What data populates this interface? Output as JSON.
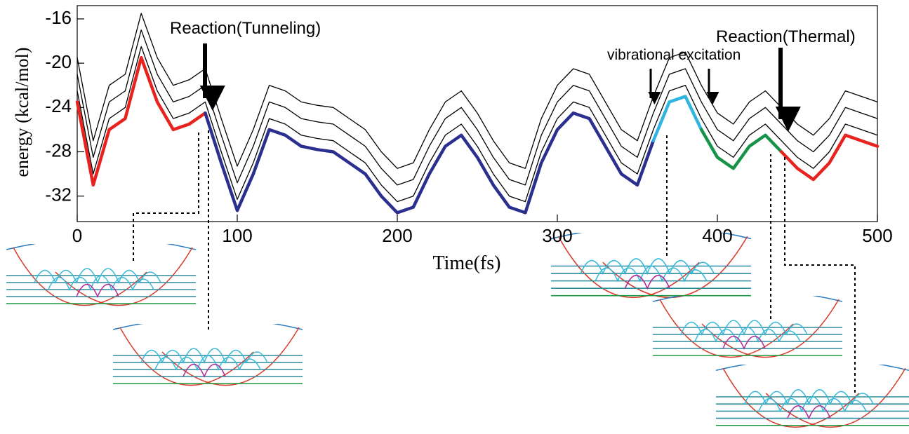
{
  "chart_data": {
    "type": "line",
    "y_label": "energy (kcal/mol)",
    "x_label": "Time(fs)",
    "annotations": [
      "Reaction(Tunneling)",
      "vibrational excitation",
      "Reaction(Thermal)"
    ],
    "xlim": [
      0,
      500
    ],
    "xticks": [
      0,
      100,
      200,
      300,
      400,
      500
    ],
    "ylim": [
      -34.3,
      -14.8
    ],
    "yticks": [
      -16,
      -20,
      -24,
      -28,
      -32
    ],
    "x": [
      0,
      10,
      20,
      30,
      40,
      50,
      60,
      70,
      80,
      90,
      100,
      110,
      120,
      130,
      140,
      150,
      160,
      170,
      180,
      190,
      200,
      210,
      220,
      230,
      240,
      250,
      260,
      270,
      280,
      290,
      300,
      310,
      320,
      330,
      340,
      350,
      360,
      370,
      380,
      390,
      400,
      410,
      420,
      430,
      440,
      450,
      460,
      470,
      480,
      490,
      500
    ],
    "series": [
      {
        "color": "#000000",
        "values": [
          -22.5,
          -30,
          -25,
          -24,
          -18.5,
          -22.5,
          -25,
          -24.5,
          -23.5,
          -28,
          -32.3,
          -29,
          -25,
          -25.5,
          -26.5,
          -26.8,
          -27,
          -28,
          -29,
          -31,
          -32.5,
          -32,
          -29,
          -26.5,
          -25.5,
          -27.5,
          -30,
          -32,
          -32.5,
          -28,
          -25,
          -23.5,
          -24,
          -26.5,
          -29,
          -30,
          -26,
          -22.5,
          -22,
          -25,
          -27.5,
          -28.5,
          -26.5,
          -25.5,
          -27,
          -28.5,
          -29.5,
          -28,
          -25.5,
          -26,
          -26.5
        ]
      },
      {
        "color": "#000000",
        "values": [
          -21,
          -28.5,
          -23.5,
          -22.5,
          -17,
          -21,
          -23.5,
          -23,
          -22,
          -26.5,
          -30.8,
          -27.5,
          -23.5,
          -24,
          -25,
          -25.3,
          -25.5,
          -26.5,
          -27.5,
          -29.5,
          -31,
          -30.5,
          -27.5,
          -25,
          -24,
          -26,
          -28.5,
          -30.5,
          -31,
          -26.5,
          -23.5,
          -22,
          -22.5,
          -25,
          -27.5,
          -28.5,
          -24.5,
          -21,
          -20.5,
          -23.5,
          -26,
          -27,
          -25,
          -24,
          -25.5,
          -27,
          -28,
          -26.5,
          -24,
          -24.5,
          -25
        ]
      },
      {
        "color": "#000000",
        "values": [
          -19.5,
          -27,
          -22,
          -21,
          -15.5,
          -19.5,
          -22,
          -21.5,
          -20.5,
          -25,
          -29.3,
          -26,
          -22,
          -22.5,
          -23.5,
          -23.8,
          -24,
          -25,
          -26,
          -28,
          -29.5,
          -29,
          -26,
          -23.5,
          -22.5,
          -24.5,
          -27,
          -29,
          -29.5,
          -25,
          -22,
          -20.5,
          -21,
          -23.5,
          -26,
          -27,
          -23,
          -19.5,
          -19,
          -22,
          -24.5,
          -25.5,
          -23.5,
          -22.5,
          -24,
          -25.5,
          -26.5,
          -25,
          -22.5,
          -23,
          -23.5
        ]
      },
      {
        "color": "#e8221e",
        "values": [
          -23.5,
          -31,
          -26,
          -25,
          -19.5,
          -23.5,
          -26,
          -25.5,
          -24.5,
          null,
          null,
          null,
          null,
          null,
          null,
          null,
          null,
          null,
          null,
          null,
          null,
          null,
          null,
          null,
          null,
          null,
          null,
          null,
          null,
          null,
          null,
          null,
          null,
          null,
          null,
          null,
          null,
          null,
          null,
          null,
          null,
          null,
          null,
          null,
          null,
          null,
          null,
          null,
          null,
          null,
          null
        ]
      },
      {
        "color": "#2b2f8f",
        "values": [
          null,
          null,
          null,
          null,
          null,
          null,
          null,
          null,
          -24.5,
          -29,
          -33.3,
          -30,
          -26,
          -26.5,
          -27.5,
          -27.8,
          -28,
          -29,
          -30,
          -32,
          -33.5,
          -33,
          -30,
          -27.5,
          -26.5,
          -28.5,
          -31,
          -33,
          -33.5,
          -29,
          -26,
          -24.5,
          -25,
          -27.5,
          -30,
          -31,
          -27,
          null,
          null,
          null,
          null,
          null,
          null,
          null,
          null,
          null,
          null,
          null,
          null,
          null,
          null
        ]
      },
      {
        "color": "#2fb5e0",
        "values": [
          null,
          null,
          null,
          null,
          null,
          null,
          null,
          null,
          null,
          null,
          null,
          null,
          null,
          null,
          null,
          null,
          null,
          null,
          null,
          null,
          null,
          null,
          null,
          null,
          null,
          null,
          null,
          null,
          null,
          null,
          null,
          null,
          null,
          null,
          null,
          null,
          -27,
          -23.5,
          -23,
          -26,
          null,
          null,
          null,
          null,
          null,
          null,
          null,
          null,
          null,
          null,
          null
        ]
      },
      {
        "color": "#159447",
        "values": [
          null,
          null,
          null,
          null,
          null,
          null,
          null,
          null,
          null,
          null,
          null,
          null,
          null,
          null,
          null,
          null,
          null,
          null,
          null,
          null,
          null,
          null,
          null,
          null,
          null,
          null,
          null,
          null,
          null,
          null,
          null,
          null,
          null,
          null,
          null,
          null,
          null,
          null,
          null,
          -26,
          -28.5,
          -29.5,
          -27.5,
          -26.5,
          -28,
          null,
          null,
          null,
          null,
          null,
          null
        ]
      },
      {
        "color": "#e8221e",
        "values": [
          null,
          null,
          null,
          null,
          null,
          null,
          null,
          null,
          null,
          null,
          null,
          null,
          null,
          null,
          null,
          null,
          null,
          null,
          null,
          null,
          null,
          null,
          null,
          null,
          null,
          null,
          null,
          null,
          null,
          null,
          null,
          null,
          null,
          null,
          null,
          null,
          null,
          null,
          null,
          null,
          null,
          null,
          null,
          null,
          -28,
          -29.5,
          -30.5,
          -29,
          -26.5,
          -27,
          -27.5
        ]
      }
    ]
  }
}
